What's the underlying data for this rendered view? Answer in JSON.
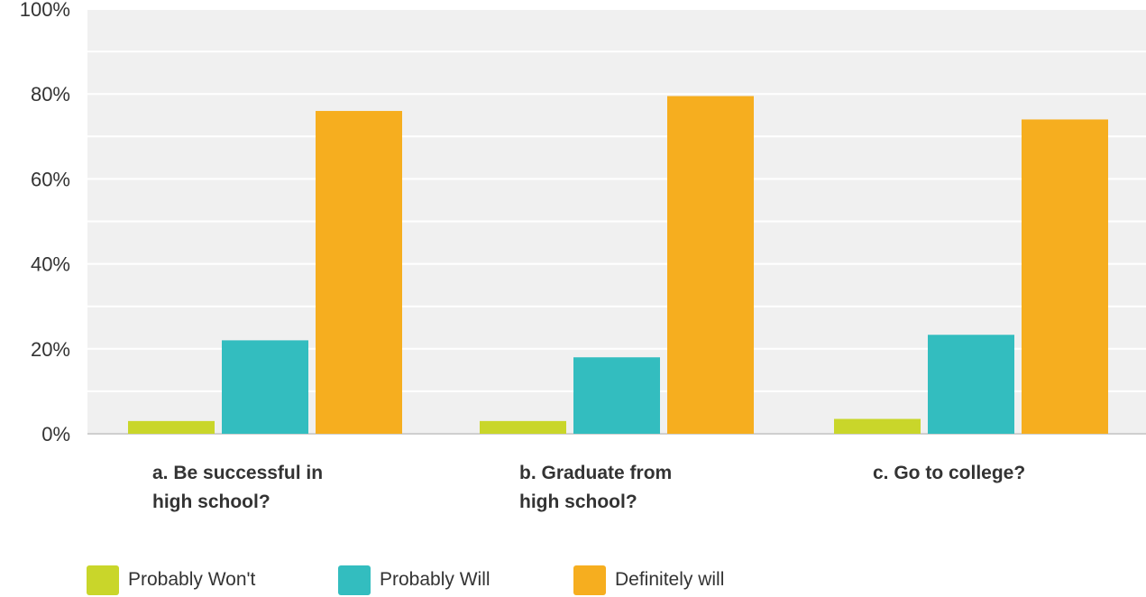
{
  "chart_data": {
    "type": "bar",
    "categories": [
      [
        "a. Be successful in",
        "high school?"
      ],
      [
        "b. Graduate from",
        "high school?"
      ],
      [
        "c. Go to college?"
      ]
    ],
    "series": [
      {
        "name": "Probably Won't",
        "color": "#c9d62a",
        "values": [
          3,
          3,
          3.5
        ]
      },
      {
        "name": "Probably Will",
        "color": "#33bdbf",
        "values": [
          22,
          18,
          23.3
        ]
      },
      {
        "name": "Definitely will",
        "color": "#f6ae1f",
        "values": [
          76,
          79.5,
          74
        ]
      }
    ],
    "y_ticks": [
      "0%",
      "20%",
      "40%",
      "60%",
      "80%",
      "100%"
    ],
    "ylim": [
      0,
      100
    ],
    "grid": true,
    "plot_background": "#f0f0f0",
    "legend_position": "bottom-left"
  }
}
